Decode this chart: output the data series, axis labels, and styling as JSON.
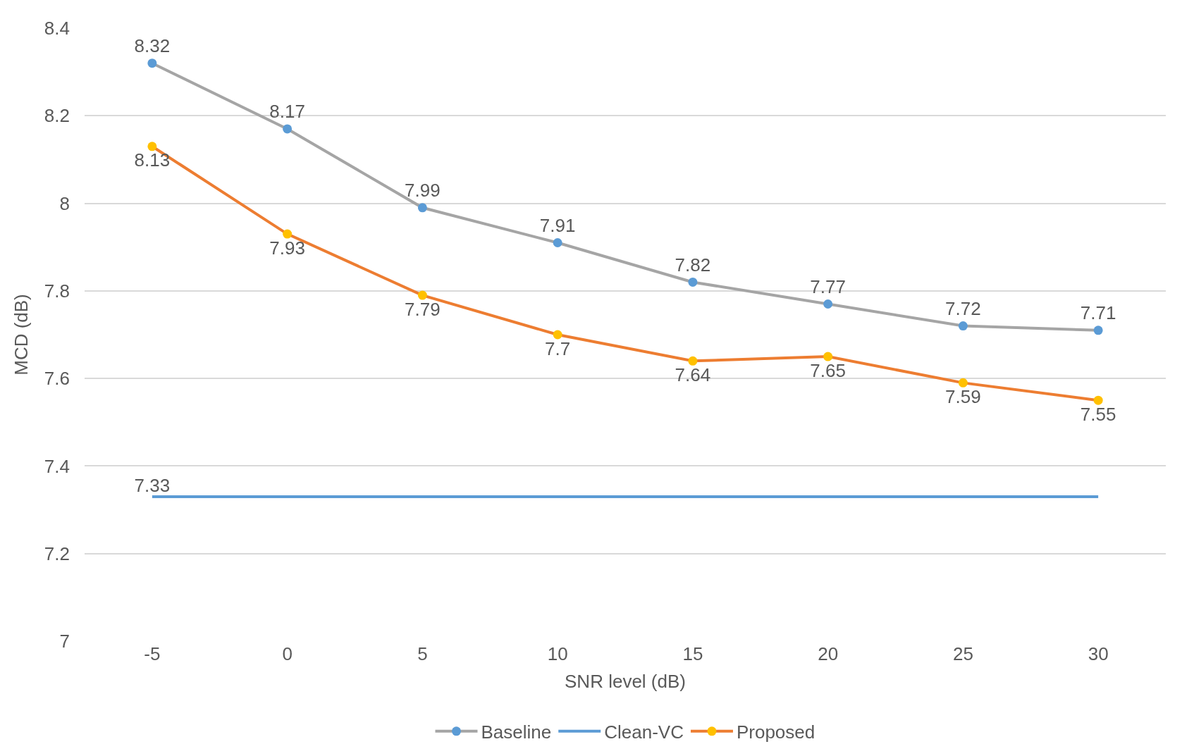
{
  "chart_data": {
    "type": "line",
    "xlabel": "SNR level (dB)",
    "ylabel": "MCD (dB)",
    "categories": [
      "-5",
      "0",
      "5",
      "10",
      "15",
      "20",
      "25",
      "30"
    ],
    "series": [
      {
        "name": "Baseline",
        "color": "#a5a5a5",
        "colors": [
          "#5b9bd5",
          "#5b9bd5",
          "#5b9bd5",
          "#5b9bd5",
          "#5b9bd5",
          "#5b9bd5",
          "#5b9bd5",
          "#5b9bd5"
        ],
        "values": [
          8.32,
          8.17,
          7.99,
          7.91,
          7.82,
          7.77,
          7.72,
          7.71
        ],
        "value_labels": [
          "8.32",
          "8.17",
          "7.99",
          "7.91",
          "7.82",
          "7.77",
          "7.72",
          "7.71"
        ],
        "marker": "circle"
      },
      {
        "name": "Clean-VC",
        "color": "#5b9bd5",
        "values": [
          7.33,
          7.33,
          7.33,
          7.33,
          7.33,
          7.33,
          7.33,
          7.33
        ],
        "value_labels": [
          "7.33",
          null,
          null,
          null,
          null,
          null,
          null,
          null
        ],
        "marker": "none"
      },
      {
        "name": "Proposed",
        "color": "#ed7d31",
        "colors": [
          "#ffc000",
          "#ffc000",
          "#ffc000",
          "#ffc000",
          "#ffc000",
          "#ffc000",
          "#ffc000",
          "#ffc000"
        ],
        "values": [
          8.13,
          7.93,
          7.79,
          7.7,
          7.64,
          7.65,
          7.59,
          7.55
        ],
        "value_labels": [
          "8.13",
          "7.93",
          "7.79",
          "7.7",
          "7.64",
          "7.65",
          "7.59",
          "7.55"
        ],
        "marker": "circle"
      }
    ],
    "ylim": [
      7,
      8.4
    ],
    "yticks": [
      7,
      7.2,
      7.4,
      7.6,
      7.8,
      8,
      8.2,
      8.4
    ],
    "grid": "y",
    "legend": "bottom",
    "line_style": "solid"
  }
}
